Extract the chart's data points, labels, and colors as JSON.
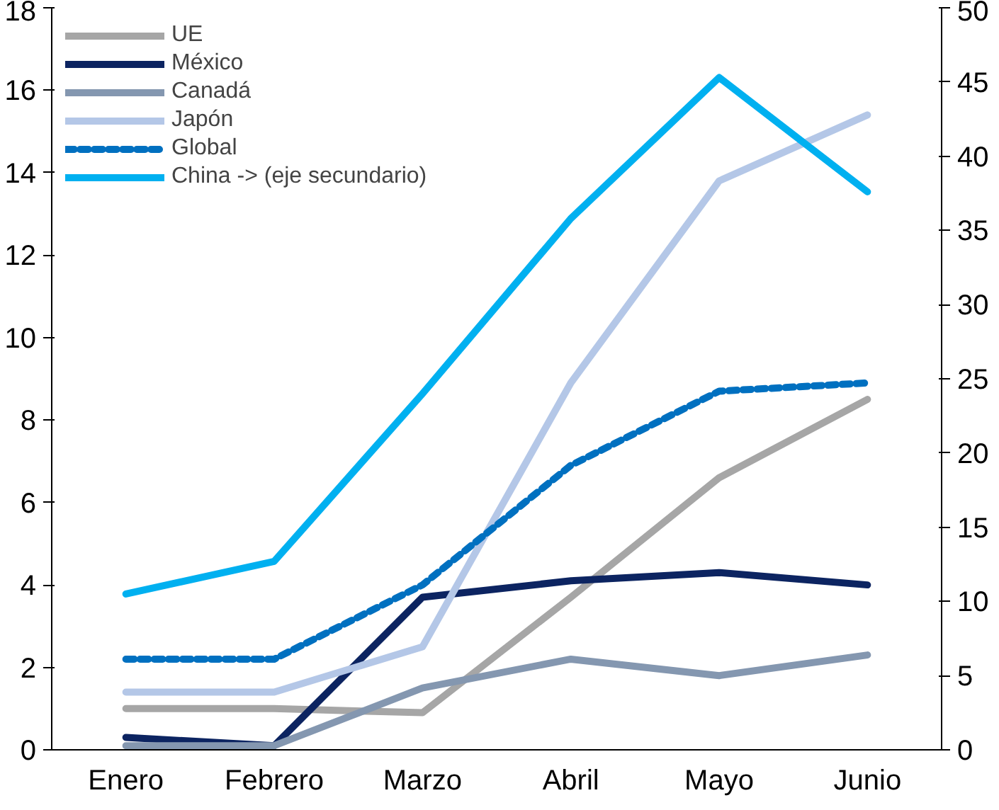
{
  "chart_data": {
    "type": "line",
    "categories": [
      "Enero",
      "Febrero",
      "Marzo",
      "Abril",
      "Mayo",
      "Junio"
    ],
    "ylim": [
      0,
      18
    ],
    "yticks": [
      0,
      2,
      4,
      6,
      8,
      10,
      12,
      14,
      16,
      18
    ],
    "y2lim": [
      0,
      50
    ],
    "y2ticks": [
      0,
      5,
      10,
      15,
      20,
      25,
      30,
      35,
      40,
      45,
      50
    ],
    "grid": false,
    "legend": "top left",
    "marker": "none",
    "series": [
      {
        "name": "UE",
        "color": "#a6a6a6",
        "values": [
          1.0,
          1.0,
          0.9,
          3.7,
          6.6,
          8.5
        ]
      },
      {
        "name": "México",
        "color": "#0c2461",
        "values": [
          0.3,
          0.1,
          3.7,
          4.1,
          4.3,
          4.0
        ]
      },
      {
        "name": "Canadá",
        "color": "#8497b0",
        "values": [
          0.1,
          0.1,
          1.5,
          2.2,
          1.8,
          2.3
        ]
      },
      {
        "name": "Japón",
        "color": "#b4c7e7",
        "values": [
          1.4,
          1.4,
          2.5,
          8.9,
          13.8,
          15.4
        ]
      },
      {
        "name": "Global",
        "color": "#0070c0",
        "line_style": "dashed",
        "values": [
          2.2,
          2.2,
          4.0,
          6.9,
          8.7,
          8.9
        ]
      },
      {
        "name": "China -> (eje secundario)",
        "color": "#00b0f0",
        "axis": "y2",
        "values": [
          10.5,
          12.7,
          24.0,
          35.8,
          45.3,
          37.6
        ]
      }
    ]
  }
}
